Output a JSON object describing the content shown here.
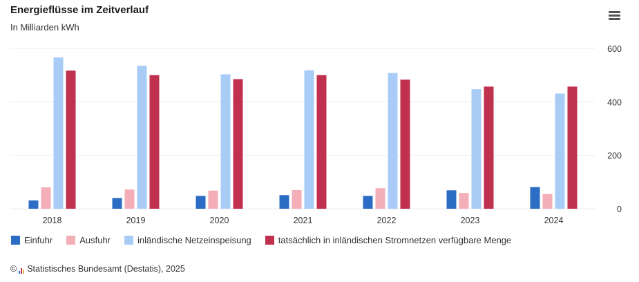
{
  "header": {
    "title": "Energieflüsse im Zeitverlauf",
    "subtitle": "In Milliarden kWh"
  },
  "menu_icon": "hamburger-menu-icon",
  "credit": {
    "copyright": "©",
    "text": "Statistisches Bundesamt (Destatis), 2025"
  },
  "colors": {
    "einfuhr": "#2b6cc4",
    "ausfuhr": "#f4aeb8",
    "netz": "#a9ccf7",
    "menge": "#c0304f",
    "grid": "#ececec",
    "axis_text": "#333333"
  },
  "chart_data": {
    "type": "bar",
    "title": "Energieflüsse im Zeitverlauf",
    "subtitle": "In Milliarden kWh",
    "categories": [
      "2018",
      "2019",
      "2020",
      "2021",
      "2022",
      "2023",
      "2024"
    ],
    "ylim": [
      0,
      600
    ],
    "yticks": [
      0,
      200,
      400,
      600
    ],
    "y_axis_side": "right",
    "grid": true,
    "legend_position": "bottom",
    "series": [
      {
        "name": "Einfuhr",
        "values": [
          31,
          40,
          48,
          51,
          48,
          69,
          81
        ]
      },
      {
        "name": "Ausfuhr",
        "values": [
          80,
          72,
          68,
          70,
          77,
          59,
          55
        ]
      },
      {
        "name": "inländische Netzeinspeisung",
        "values": [
          566,
          535,
          503,
          518,
          508,
          447,
          431
        ]
      },
      {
        "name": "tatsächlich in inländischen Stromnetzen verfügbare Menge",
        "values": [
          517,
          500,
          485,
          500,
          483,
          457,
          457
        ]
      }
    ]
  }
}
